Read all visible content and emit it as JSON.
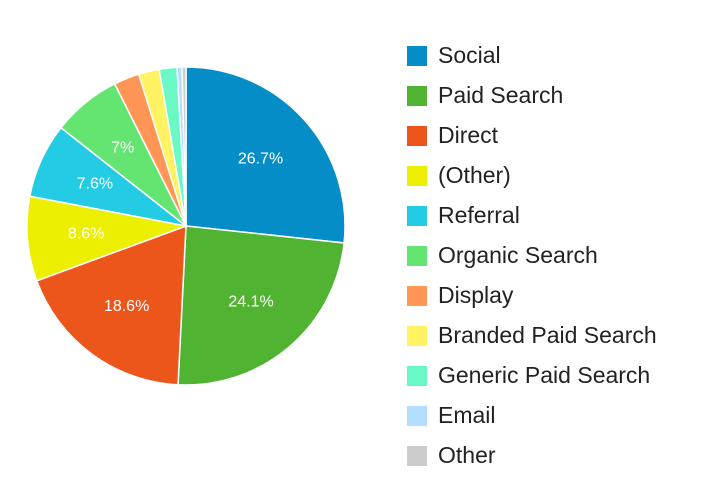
{
  "chart_data": {
    "type": "pie",
    "categories": [
      "Social",
      "Paid Search",
      "Direct",
      "(Other)",
      "Referral",
      "Organic Search",
      "Display",
      "Branded Paid Search",
      "Generic Paid Search",
      "Email",
      "Other"
    ],
    "values": [
      26.7,
      24.1,
      18.6,
      8.6,
      7.6,
      7,
      2.6,
      2.1,
      1.8,
      0.5,
      0.4
    ],
    "value_labels": [
      "26.7%",
      "24.1%",
      "18.6%",
      "8.6%",
      "7.6%",
      "7%",
      null,
      null,
      null,
      null,
      null
    ],
    "colors": [
      "#058dc7",
      "#50b432",
      "#ed561b",
      "#edef00",
      "#24cbe5",
      "#64e572",
      "#ff9655",
      "#fff263",
      "#6af9c4",
      "#b2deff",
      "#cccccc"
    ],
    "legend": "right"
  }
}
